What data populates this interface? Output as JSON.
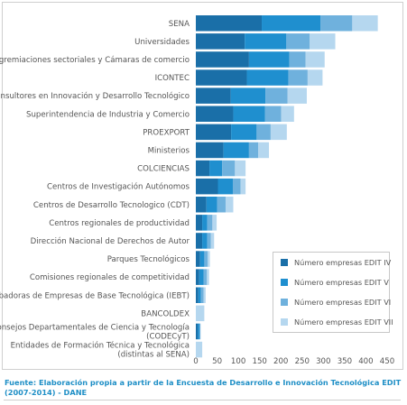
{
  "chart_data": {
    "type": "bar",
    "orientation": "horizontal",
    "stacked": true,
    "categories": [
      "SENA",
      "Universidades",
      "Agremiaciones sectoriales y Cámaras de comercio",
      "ICONTEC",
      "Consultores en Innovación y Desarrollo Tecnológico",
      "Superintendencia de Industria y Comercio",
      "PROEXPORT",
      "Ministerios",
      "COLCIENCIAS",
      "Centros de Investigación Autónomos",
      "Centros de Desarrollo Tecnologico (CDT)",
      "Centros regionales de productividad",
      "Dirección Nacional de Derechos de Autor",
      "Parques Tecnológicos",
      "Comisiones regionales de competitividad",
      "Incubadoras de Empresas de Base Tecnológica (IEBT)",
      "BANCOLDEX",
      "Consejos Departamentales de Ciencia y Tecnología (CODECyT)",
      "Entidades de Formación Técnica y Tecnológica (distintas al SENA)"
    ],
    "category_lines": [
      [
        "SENA"
      ],
      [
        "Universidades"
      ],
      [
        "Agremiaciones sectoriales y Cámaras de comercio"
      ],
      [
        "ICONTEC"
      ],
      [
        "Consultores en Innovación y Desarrollo Tecnológico"
      ],
      [
        "Superintendencia de Industria y Comercio"
      ],
      [
        "PROEXPORT"
      ],
      [
        "Ministerios"
      ],
      [
        "COLCIENCIAS"
      ],
      [
        "Centros de Investigación Autónomos"
      ],
      [
        "Centros de Desarrollo Tecnologico (CDT)"
      ],
      [
        "Centros regionales de productividad"
      ],
      [
        "Dirección Nacional de Derechos de Autor"
      ],
      [
        "Parques Tecnológicos"
      ],
      [
        "Comisiones regionales de competitividad"
      ],
      [
        "Incubadoras de Empresas de Base Tecnológica (IEBT)"
      ],
      [
        "BANCOLDEX"
      ],
      [
        "Consejos Departamentales de Ciencia y Tecnología",
        "(CODECyT)"
      ],
      [
        "Entidades de Formación Técnica y Tecnológica",
        "(distintas al SENA)"
      ]
    ],
    "series": [
      {
        "name": "Número empresas EDIT IV",
        "color": "#1a6fa8",
        "values": [
          155,
          115,
          125,
          120,
          82,
          88,
          83,
          65,
          32,
          52,
          25,
          15,
          15,
          10,
          8,
          6,
          0,
          5,
          0
        ]
      },
      {
        "name": "Número empresas EDIT V",
        "color": "#1f8fcf",
        "values": [
          138,
          98,
          95,
          98,
          82,
          75,
          60,
          60,
          30,
          35,
          25,
          12,
          12,
          10,
          10,
          6,
          0,
          4,
          0
        ]
      },
      {
        "name": "Número empresas EDIT VI",
        "color": "#6fb1dd",
        "values": [
          75,
          55,
          38,
          45,
          52,
          38,
          33,
          22,
          30,
          18,
          20,
          12,
          8,
          8,
          8,
          6,
          0,
          2,
          0
        ]
      },
      {
        "name": "Número empresas EDIT VII",
        "color": "#b5d7ef",
        "values": [
          60,
          60,
          45,
          35,
          45,
          30,
          38,
          25,
          25,
          12,
          18,
          10,
          8,
          5,
          5,
          5,
          20,
          0,
          15
        ]
      }
    ],
    "x_ticks": [
      0,
      50,
      100,
      150,
      200,
      250,
      300,
      350,
      400,
      450
    ],
    "xlim": [
      0,
      450
    ],
    "xlabel": "",
    "ylabel": "",
    "grid": false,
    "legend_position": "bottom-right"
  },
  "source_note": "Fuente: Elaboración propia a partir de  la Encuesta de Desarrollo e Innovación Tecnológica EDIT (2007-2014)  - DANE"
}
